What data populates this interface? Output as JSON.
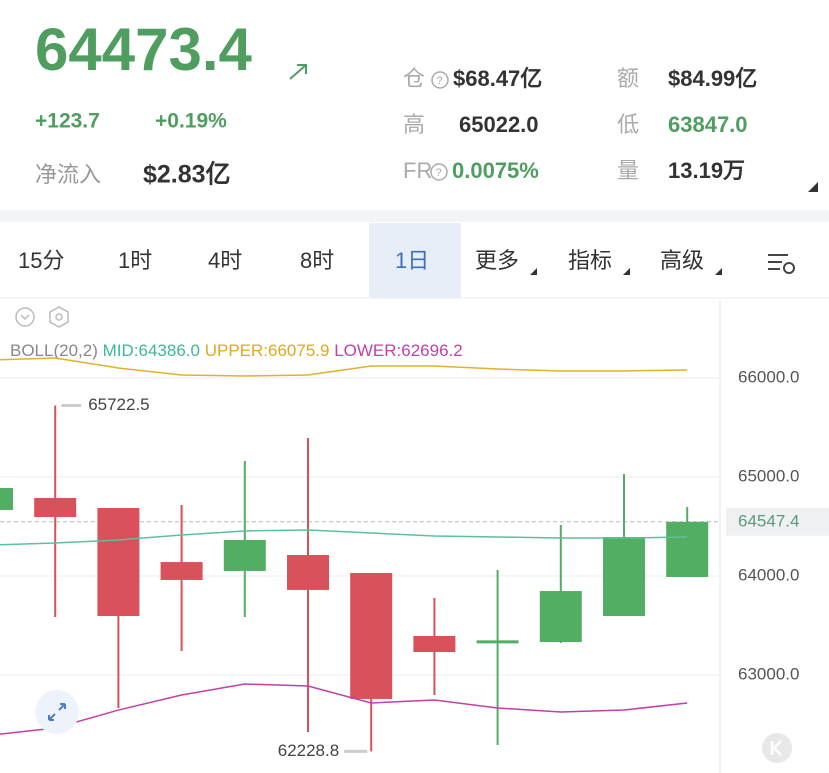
{
  "header": {
    "price": "64473.4",
    "change": "+123.7",
    "change_pct": "+0.19%",
    "net_inflow_label": "净流入",
    "net_inflow": "$2.83亿",
    "stats": [
      {
        "label": "仓",
        "value": "$68.47亿",
        "help": true
      },
      {
        "label": "额",
        "value": "$84.99亿"
      },
      {
        "label": "高",
        "value": "65022.0"
      },
      {
        "label": "低",
        "value": "63847.0",
        "green": true
      },
      {
        "label": "FR",
        "value": "0.0075%",
        "help": true,
        "green": true
      },
      {
        "label": "量",
        "value": "13.19万"
      }
    ]
  },
  "tabs": {
    "items": [
      "15分",
      "1时",
      "4时",
      "8时",
      "1日",
      "更多",
      "指标",
      "高级"
    ],
    "active": 4
  },
  "chart_data": {
    "type": "candlestick",
    "legend": {
      "name": "BOLL(20,2)",
      "items": [
        "MID:64386.0",
        "UPPER:66075.9",
        "LOWER:62696.2"
      ],
      "colors": [
        "#3bb89a",
        "#e0a820",
        "#c23fa8"
      ]
    },
    "up_color": "#52ae63",
    "down_color": "#d9515a",
    "candles": [
      {
        "open": 64667,
        "high": 64950,
        "low": 64600,
        "close": 64889
      },
      {
        "open": 64788,
        "high": 65722.5,
        "low": 63586,
        "close": 64596
      },
      {
        "open": 64687,
        "high": 64687,
        "low": 62667,
        "close": 63596
      },
      {
        "open": 64141,
        "high": 64717,
        "low": 63242,
        "close": 63960
      },
      {
        "open": 64051,
        "high": 65162,
        "low": 63586,
        "close": 64364
      },
      {
        "open": 64212,
        "high": 65394,
        "low": 62424,
        "close": 63859
      },
      {
        "open": 64030,
        "high": 64030,
        "low": 62228.8,
        "close": 62758
      },
      {
        "open": 63394,
        "high": 63778,
        "low": 62798,
        "close": 63232
      },
      {
        "open": 63330,
        "high": 64061,
        "low": 62293,
        "close": 63350
      },
      {
        "open": 63333,
        "high": 64515,
        "low": 63323,
        "close": 63848
      },
      {
        "open": 63596,
        "high": 65030,
        "low": 63596,
        "close": 64394
      },
      {
        "open": 63990,
        "high": 64697,
        "low": 63990,
        "close": 64547.4
      }
    ],
    "lines": [
      {
        "color": "#e0b030",
        "values": [
          66182,
          66202,
          66101,
          66030,
          66020,
          66030,
          66121,
          66121,
          66091,
          66071,
          66071,
          66081
        ]
      },
      {
        "color": "#5cc0a0",
        "values": [
          64313,
          64333,
          64364,
          64414,
          64455,
          64465,
          64434,
          64404,
          64394,
          64384,
          64384,
          64394
        ]
      },
      {
        "color": "#c23fa8",
        "values": [
          62394,
          62465,
          62646,
          62798,
          62909,
          62889,
          62717,
          62747,
          62667,
          62626,
          62646,
          62717
        ]
      }
    ],
    "high_mark": 1,
    "low_mark": 6,
    "last_price": 64547.4,
    "ylim": [
      62010,
      66788
    ],
    "yticks": [
      {
        "value": 63000,
        "label": "63000.0"
      },
      {
        "value": 64000,
        "label": "64000.0"
      },
      {
        "value": 65000,
        "label": "65000.0"
      },
      {
        "value": 66000,
        "label": "66000.0"
      }
    ],
    "grid": true
  }
}
